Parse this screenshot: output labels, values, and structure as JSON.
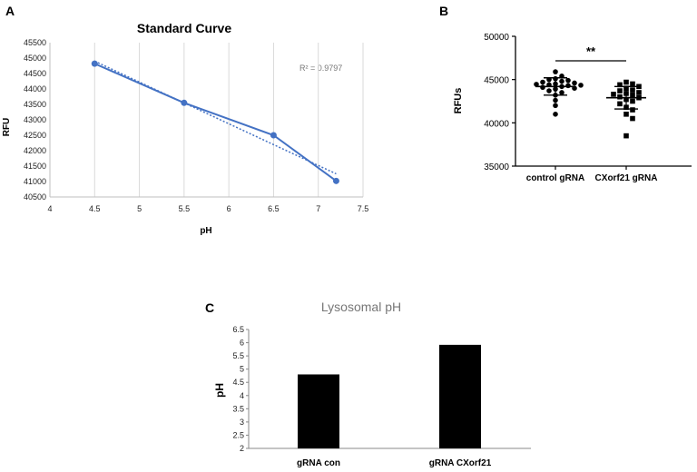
{
  "chart_data": [
    {
      "panel": "A",
      "type": "line",
      "title": "Standard Curve",
      "xlabel": "pH",
      "ylabel": "RFU",
      "xlim": [
        4,
        7.5
      ],
      "ylim": [
        40500,
        45500
      ],
      "xticks": [
        "4",
        "4.5",
        "5",
        "5.5",
        "6",
        "6.5",
        "7",
        "7.5"
      ],
      "yticks": [
        "40500",
        "41000",
        "41500",
        "42000",
        "42500",
        "43000",
        "43500",
        "44000",
        "44500",
        "45000",
        "45500"
      ],
      "series": [
        {
          "name": "RFU",
          "x": [
            4.5,
            5.5,
            6.5,
            7.2
          ],
          "y": [
            44820,
            43550,
            42500,
            41020
          ]
        }
      ],
      "trendline": {
        "x": [
          4.5,
          7.2
        ],
        "y": [
          44900,
          41250
        ],
        "style": "dotted"
      },
      "annotation": "R² = 0.9797",
      "grid": "vertical",
      "color": "#4472c4"
    },
    {
      "panel": "B",
      "type": "scatter",
      "title": "",
      "xlabel": "",
      "ylabel": "RFUs",
      "ylim": [
        35000,
        50000
      ],
      "yticks": [
        "35000",
        "40000",
        "45000",
        "50000"
      ],
      "categories": [
        "control gRNA",
        "CXorf21 gRNA"
      ],
      "series": [
        {
          "name": "control gRNA",
          "marker": "circle",
          "values": [
            45900,
            45400,
            45100,
            45000,
            44900,
            44800,
            44700,
            44600,
            44500,
            44450,
            44400,
            44350,
            44300,
            44200,
            44100,
            44000,
            43900,
            43700,
            43500,
            43200,
            42600,
            42000,
            41000
          ],
          "mean": 44200,
          "sd": 1000
        },
        {
          "name": "CXorf21 gRNA",
          "marker": "square",
          "values": [
            44700,
            44500,
            44400,
            44200,
            44000,
            43800,
            43700,
            43500,
            43400,
            43300,
            43200,
            43000,
            42900,
            42700,
            42500,
            42200,
            41800,
            41500,
            41000,
            40500,
            38500
          ],
          "mean": 42900,
          "sd": 1300
        }
      ],
      "significance": "**"
    },
    {
      "panel": "C",
      "type": "bar",
      "title": "Lysosomal pH",
      "xlabel": "",
      "ylabel": "pH",
      "ylim": [
        2,
        6.5
      ],
      "yticks": [
        "2",
        "2.5",
        "3",
        "3.5",
        "4",
        "4.5",
        "5",
        "5.5",
        "6",
        "6.5"
      ],
      "categories": [
        "gRNA con",
        "gRNA CXorf21"
      ],
      "values": [
        4.8,
        5.92
      ],
      "color": "#000000"
    }
  ]
}
